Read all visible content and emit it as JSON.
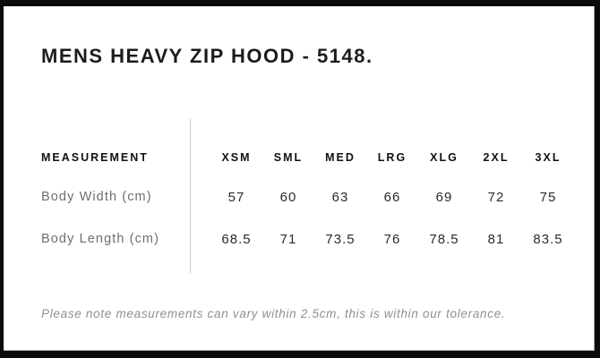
{
  "page": {
    "title": "MENS HEAVY ZIP HOOD - 5148.",
    "note": "Please note measurements can vary within 2.5cm, this is within our tolerance."
  },
  "size_chart": {
    "measurement_header": "MEASUREMENT",
    "sizes": [
      "XSM",
      "SML",
      "MED",
      "LRG",
      "XLG",
      "2XL",
      "3XL"
    ],
    "rows": [
      {
        "label": "Body Width (cm)",
        "values": [
          "57",
          "60",
          "63",
          "66",
          "69",
          "72",
          "75"
        ]
      },
      {
        "label": "Body Length (cm)",
        "values": [
          "68.5",
          "71",
          "73.5",
          "76",
          "78.5",
          "81",
          "83.5"
        ]
      }
    ]
  },
  "colors": {
    "frame_background": "#0b0b0b",
    "card_background": "#ffffff",
    "title_text": "#1c1c1c",
    "header_text": "#111111",
    "row_label_text": "#6e6e6e",
    "value_text": "#2b2b2b",
    "note_text": "#8f8f8f",
    "divider": "#c9c9c9"
  }
}
